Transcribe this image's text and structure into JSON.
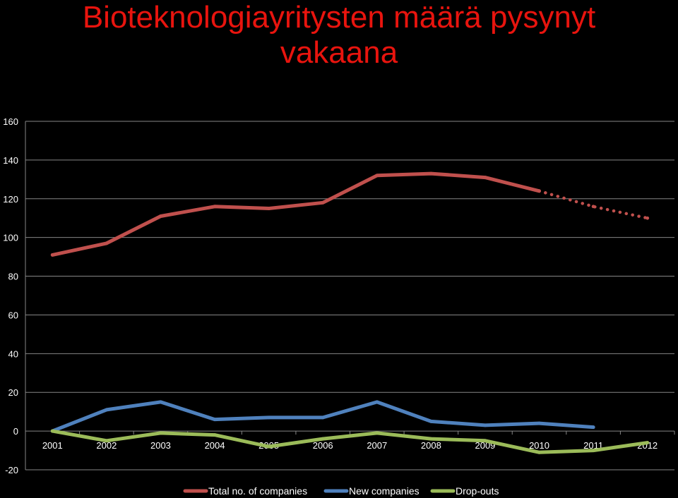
{
  "title_line1": "Bioteknologiayritysten määrä pysynyt",
  "title_line2": "vakaana",
  "chart_data": {
    "type": "line",
    "categories": [
      "2001",
      "2002",
      "2003",
      "2004",
      "2005",
      "2006",
      "2007",
      "2008",
      "2009",
      "2010",
      "2011",
      "2012"
    ],
    "ylim": [
      -20,
      160
    ],
    "yticks": [
      -20,
      0,
      20,
      40,
      60,
      80,
      100,
      120,
      140,
      160
    ],
    "grid": true,
    "legend": "bottom",
    "series": [
      {
        "name": "Total no. of companies",
        "color": "#c0504d",
        "values": [
          91,
          97,
          111,
          116,
          115,
          118,
          132,
          133,
          131,
          124,
          116,
          110
        ],
        "dotted_from_index": 9
      },
      {
        "name": "New companies",
        "color": "#4f81bd",
        "values": [
          0,
          11,
          15,
          6,
          7,
          7,
          15,
          5,
          3,
          4,
          2,
          null
        ]
      },
      {
        "name": "Drop-outs",
        "color": "#9bbb59",
        "values": [
          0,
          -5,
          -1,
          -2,
          -8,
          -4,
          -1,
          -4,
          -5,
          -11,
          -10,
          -6
        ]
      }
    ]
  }
}
